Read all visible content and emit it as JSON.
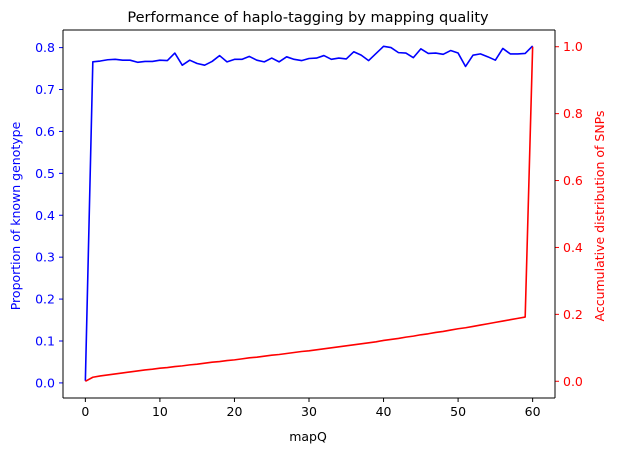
{
  "chart_data": {
    "type": "line",
    "title": "Performance of haplo-tagging by mapping quality",
    "xlabel": "mapQ",
    "xlim": [
      -3,
      63
    ],
    "xticks": [
      0,
      10,
      20,
      30,
      40,
      50,
      60
    ],
    "legend": "none",
    "grid": false,
    "y_left": {
      "label": "Proportion of known genotype",
      "color": "#0000ff",
      "lim": [
        -0.036,
        0.842
      ],
      "ticks": [
        0.0,
        0.1,
        0.2,
        0.3,
        0.4,
        0.5,
        0.6,
        0.7,
        0.8
      ]
    },
    "y_right": {
      "label": "Accumulative distribution of SNPs",
      "color": "#ff0000",
      "lim": [
        -0.05,
        1.05
      ],
      "ticks": [
        0.0,
        0.2,
        0.4,
        0.6,
        0.8,
        1.0
      ]
    },
    "series": [
      {
        "axis": "left",
        "color": "#0000ff",
        "x": [
          0,
          1,
          2,
          3,
          4,
          5,
          6,
          7,
          8,
          9,
          10,
          11,
          12,
          13,
          14,
          15,
          16,
          17,
          18,
          19,
          20,
          21,
          22,
          23,
          24,
          25,
          26,
          27,
          28,
          29,
          30,
          31,
          32,
          33,
          34,
          35,
          36,
          37,
          38,
          39,
          40,
          41,
          42,
          43,
          44,
          45,
          46,
          47,
          48,
          49,
          50,
          51,
          52,
          53,
          54,
          55,
          56,
          57,
          58,
          59,
          60
        ],
        "values": [
          0.005,
          0.766,
          0.768,
          0.771,
          0.772,
          0.77,
          0.77,
          0.765,
          0.767,
          0.767,
          0.77,
          0.769,
          0.787,
          0.758,
          0.77,
          0.762,
          0.758,
          0.767,
          0.781,
          0.766,
          0.772,
          0.772,
          0.779,
          0.77,
          0.766,
          0.775,
          0.766,
          0.778,
          0.772,
          0.769,
          0.774,
          0.775,
          0.781,
          0.772,
          0.775,
          0.773,
          0.79,
          0.782,
          0.769,
          0.786,
          0.803,
          0.8,
          0.788,
          0.787,
          0.776,
          0.797,
          0.786,
          0.787,
          0.784,
          0.793,
          0.787,
          0.755,
          0.782,
          0.785,
          0.778,
          0.77,
          0.798,
          0.785,
          0.785,
          0.786,
          0.804
        ]
      },
      {
        "axis": "right",
        "color": "#ff0000",
        "x": [
          0,
          1,
          2,
          3,
          4,
          5,
          6,
          7,
          8,
          9,
          10,
          11,
          12,
          13,
          14,
          15,
          16,
          17,
          18,
          19,
          20,
          21,
          22,
          23,
          24,
          25,
          26,
          27,
          28,
          29,
          30,
          31,
          32,
          33,
          34,
          35,
          36,
          37,
          38,
          39,
          40,
          41,
          42,
          43,
          44,
          45,
          46,
          47,
          48,
          49,
          50,
          51,
          52,
          53,
          54,
          55,
          56,
          57,
          58,
          59,
          60
        ],
        "values": [
          0.0,
          0.012,
          0.016,
          0.019,
          0.022,
          0.025,
          0.028,
          0.031,
          0.034,
          0.036,
          0.039,
          0.041,
          0.044,
          0.046,
          0.049,
          0.051,
          0.054,
          0.057,
          0.059,
          0.062,
          0.064,
          0.067,
          0.07,
          0.072,
          0.075,
          0.078,
          0.08,
          0.083,
          0.086,
          0.089,
          0.091,
          0.094,
          0.097,
          0.1,
          0.103,
          0.106,
          0.109,
          0.112,
          0.115,
          0.118,
          0.122,
          0.125,
          0.128,
          0.132,
          0.135,
          0.139,
          0.142,
          0.146,
          0.149,
          0.153,
          0.157,
          0.16,
          0.164,
          0.168,
          0.172,
          0.176,
          0.18,
          0.184,
          0.188,
          0.192,
          1.0
        ]
      }
    ]
  }
}
